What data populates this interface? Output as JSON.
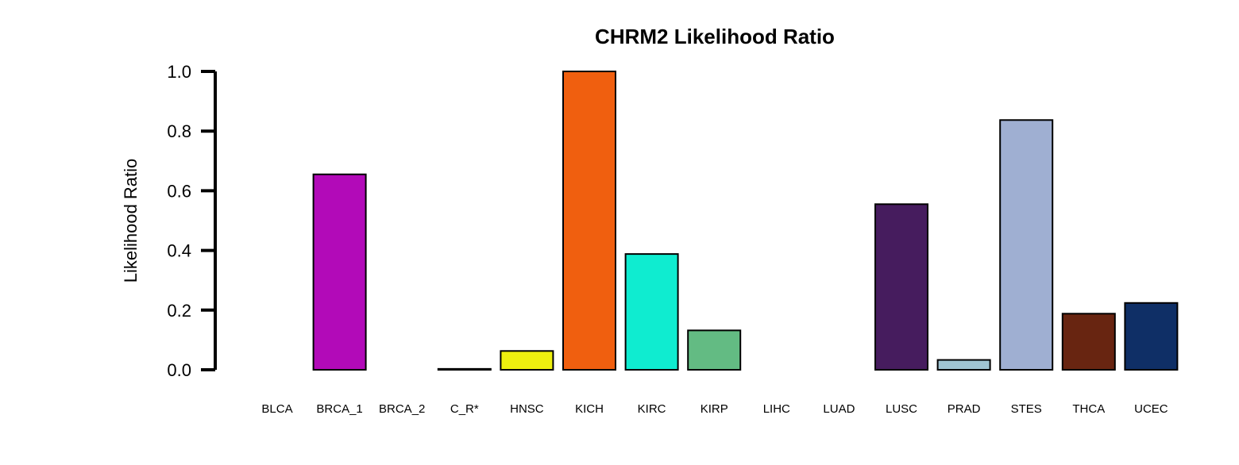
{
  "chart_data": {
    "type": "bar",
    "title": "CHRM2 Likelihood Ratio",
    "ylabel": "Likelihood Ratio",
    "xlabel": "",
    "ylim": [
      0,
      1.0
    ],
    "yticks": [
      "0.0",
      "0.2",
      "0.4",
      "0.6",
      "0.8",
      "1.0"
    ],
    "grid": false,
    "categories": [
      "BLCA",
      "BRCA_1",
      "BRCA_2",
      "C_R*",
      "HNSC",
      "KICH",
      "KIRC",
      "KIRP",
      "LIHC",
      "LUAD",
      "LUSC",
      "PRAD",
      "STES",
      "THCA",
      "UCEC"
    ],
    "values": [
      0.0,
      0.655,
      0.0,
      0.003,
      0.063,
      1.0,
      0.388,
      0.132,
      0.0,
      0.0,
      0.555,
      0.033,
      0.837,
      0.188,
      0.224
    ],
    "colors": [
      "#e41a1c",
      "#b20ab8",
      "#377eb8",
      "#4daf4a",
      "#eef00f",
      "#f05f0f",
      "#0fecd0",
      "#63bb83",
      "#984ea3",
      "#ff7f00",
      "#461c5e",
      "#9fc4d2",
      "#9fafd2",
      "#682511",
      "#0f2f66"
    ]
  }
}
